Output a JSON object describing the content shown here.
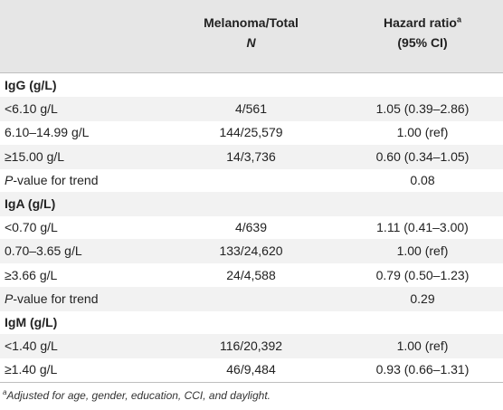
{
  "header": {
    "col1_line1": "Melanoma/Total",
    "col1_line2": "N",
    "col2_line1": "Hazard ratio",
    "col2_sup": "a",
    "col2_line2": "(95% CI)"
  },
  "rows": [
    {
      "label": "IgG (g/L)",
      "mid": "",
      "right": "",
      "group": true
    },
    {
      "label": "<6.10 g/L",
      "mid": "4/561",
      "right": "1.05 (0.39–2.86)"
    },
    {
      "label": "6.10–14.99 g/L",
      "mid": "144/25,579",
      "right": "1.00 (ref)"
    },
    {
      "label": "≥15.00 g/L",
      "mid": "14/3,736",
      "right": "0.60 (0.34–1.05)"
    },
    {
      "label_italic": "P",
      "label_rest": "-value for trend",
      "mid": "",
      "right": "0.08"
    },
    {
      "label": "IgA (g/L)",
      "mid": "",
      "right": "",
      "group": true
    },
    {
      "label": "<0.70 g/L",
      "mid": "4/639",
      "right": "1.11 (0.41–3.00)"
    },
    {
      "label": "0.70–3.65 g/L",
      "mid": "133/24,620",
      "right": "1.00 (ref)"
    },
    {
      "label": "≥3.66 g/L",
      "mid": "24/4,588",
      "right": "0.79 (0.50–1.23)"
    },
    {
      "label_italic": "P",
      "label_rest": "-value for trend",
      "mid": "",
      "right": "0.29"
    },
    {
      "label": "IgM (g/L)",
      "mid": "",
      "right": "",
      "group": true
    },
    {
      "label": "<1.40 g/L",
      "mid": "116/20,392",
      "right": "1.00 (ref)"
    },
    {
      "label": "≥1.40 g/L",
      "mid": "46/9,484",
      "right": "0.93 (0.66–1.31)"
    }
  ],
  "footnote": {
    "sup": "a",
    "text": "Adjusted for age, gender, education, CCI, and daylight."
  }
}
